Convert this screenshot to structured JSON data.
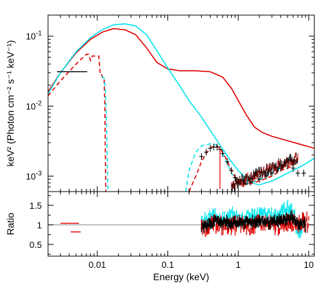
{
  "chart_data": [
    {
      "panel": "spectrum",
      "type": "line",
      "x_scale": "log",
      "y_scale": "log",
      "xlim": [
        0.002,
        12
      ],
      "ylim": [
        0.0006,
        0.2
      ],
      "ylabel": "keV² (Photon cm⁻² s⁻¹ keV⁻¹)",
      "xlabel": "",
      "y_ticks": [
        {
          "value": 0.1,
          "label": "10",
          "exp": "-1"
        },
        {
          "value": 0.01,
          "label": "10",
          "exp": "-2"
        },
        {
          "value": 0.001,
          "label": "10",
          "exp": "-3"
        }
      ],
      "colors": {
        "red_model": "#e00000",
        "cyan_model": "#00e5ee",
        "data_black": "#000000"
      },
      "series": [
        {
          "style": "solid",
          "color": "red",
          "points": [
            [
              0.002,
              0.016
            ],
            [
              0.003,
              0.03
            ],
            [
              0.005,
              0.058
            ],
            [
              0.008,
              0.09
            ],
            [
              0.012,
              0.115
            ],
            [
              0.017,
              0.128
            ],
            [
              0.025,
              0.123
            ],
            [
              0.035,
              0.105
            ],
            [
              0.05,
              0.068
            ],
            [
              0.07,
              0.042
            ],
            [
              0.1,
              0.034
            ],
            [
              0.15,
              0.032
            ],
            [
              0.25,
              0.032
            ],
            [
              0.4,
              0.031
            ],
            [
              0.6,
              0.026
            ],
            [
              0.8,
              0.018
            ],
            [
              1.0,
              0.012
            ],
            [
              1.3,
              0.0075
            ],
            [
              1.7,
              0.005
            ],
            [
              2.2,
              0.0042
            ],
            [
              3,
              0.0037
            ],
            [
              5,
              0.0032
            ],
            [
              8,
              0.0028
            ],
            [
              12,
              0.0025
            ]
          ]
        },
        {
          "style": "solid",
          "color": "cyan",
          "points": [
            [
              0.002,
              0.015
            ],
            [
              0.003,
              0.03
            ],
            [
              0.005,
              0.06
            ],
            [
              0.008,
              0.095
            ],
            [
              0.012,
              0.125
            ],
            [
              0.017,
              0.145
            ],
            [
              0.025,
              0.15
            ],
            [
              0.035,
              0.14
            ],
            [
              0.05,
              0.105
            ],
            [
              0.07,
              0.062
            ],
            [
              0.1,
              0.035
            ],
            [
              0.15,
              0.019
            ],
            [
              0.2,
              0.012
            ],
            [
              0.3,
              0.007
            ],
            [
              0.5,
              0.0032
            ],
            [
              0.8,
              0.0016
            ],
            [
              1.0,
              0.0012
            ],
            [
              1.5,
              0.0008
            ],
            [
              2,
              0.00075
            ],
            [
              3,
              0.00085
            ],
            [
              5,
              0.0011
            ],
            [
              8,
              0.0014
            ],
            [
              12,
              0.0018
            ]
          ]
        },
        {
          "style": "dashed",
          "color": "red",
          "points": [
            [
              0.002,
              0.014
            ],
            [
              0.003,
              0.023
            ],
            [
              0.005,
              0.04
            ],
            [
              0.007,
              0.055
            ],
            [
              0.0075,
              0.055
            ],
            [
              0.008,
              0.045
            ],
            [
              0.0085,
              0.052
            ],
            [
              0.0095,
              0.052
            ],
            [
              0.0105,
              0.052
            ],
            [
              0.011,
              0.028
            ],
            [
              0.0115,
              0.028
            ],
            [
              0.012,
              0.025
            ],
            [
              0.0125,
              0.025
            ],
            [
              0.0128,
              0.01
            ],
            [
              0.013,
              0.002
            ],
            [
              0.0132,
              0.0006
            ]
          ]
        },
        {
          "style": "dashed",
          "color": "cyan",
          "points": [
            [
              0.0115,
              0.026
            ],
            [
              0.012,
              0.026
            ],
            [
              0.0125,
              0.025
            ],
            [
              0.013,
              0.018
            ],
            [
              0.0135,
              0.006
            ],
            [
              0.014,
              0.001
            ],
            [
              0.0142,
              0.0006
            ]
          ]
        },
        {
          "style": "dashed",
          "color": "cyan",
          "points": [
            [
              0.18,
              0.0006
            ],
            [
              0.2,
              0.0012
            ],
            [
              0.25,
              0.0022
            ],
            [
              0.3,
              0.0027
            ],
            [
              0.4,
              0.0029
            ],
            [
              0.5,
              0.0028
            ],
            [
              0.55,
              0.0025
            ],
            [
              0.65,
              0.0018
            ],
            [
              0.8,
              0.0011
            ],
            [
              1.0,
              0.0008
            ],
            [
              1.2,
              0.00075
            ],
            [
              1.5,
              0.0008
            ],
            [
              2,
              0.0009
            ],
            [
              3,
              0.0011
            ],
            [
              4,
              0.0013
            ],
            [
              5,
              0.0015
            ],
            [
              6,
              0.0016
            ]
          ]
        },
        {
          "style": "dashed",
          "color": "red",
          "points": [
            [
              0.2,
              0.0006
            ],
            [
              0.25,
              0.001
            ],
            [
              0.3,
              0.0016
            ],
            [
              0.35,
              0.0021
            ],
            [
              0.4,
              0.0025
            ],
            [
              0.45,
              0.0027
            ],
            [
              0.5,
              0.0027
            ],
            [
              0.55,
              0.0025
            ],
            [
              0.65,
              0.0019
            ],
            [
              0.8,
              0.0012
            ],
            [
              1.0,
              0.0008
            ],
            [
              1.3,
              0.00075
            ],
            [
              2,
              0.00085
            ],
            [
              3,
              0.001
            ],
            [
              4,
              0.0012
            ],
            [
              5,
              0.0013
            ],
            [
              6,
              0.0014
            ]
          ]
        },
        {
          "style": "data",
          "color": "black",
          "points": [
            [
              0.0035,
              0.031
            ],
            [
              0.0055,
              0.031
            ],
            [
              0.3,
              0.0019
            ],
            [
              0.35,
              0.0022
            ],
            [
              0.4,
              0.0025
            ],
            [
              0.45,
              0.0026
            ],
            [
              0.5,
              0.0026
            ],
            [
              0.55,
              0.0024
            ],
            [
              0.6,
              0.0021
            ],
            [
              0.7,
              0.0016
            ],
            [
              0.8,
              0.0012
            ],
            [
              0.9,
              0.00095
            ],
            [
              1.0,
              0.0008
            ],
            [
              1.2,
              0.00078
            ],
            [
              1.5,
              0.00082
            ],
            [
              2.0,
              0.0009
            ],
            [
              2.5,
              0.001
            ],
            [
              3.0,
              0.0011
            ],
            [
              3.5,
              0.0012
            ],
            [
              4.0,
              0.0013
            ],
            [
              5.0,
              0.0014
            ],
            [
              6.0,
              0.0013
            ],
            [
              7.0,
              0.0011
            ],
            [
              8.5,
              0.0011
            ]
          ]
        }
      ]
    },
    {
      "panel": "ratio",
      "type": "scatter",
      "x_scale": "log",
      "xlim": [
        0.002,
        12
      ],
      "ylim": [
        0.2,
        1.85
      ],
      "ylabel": "Ratio",
      "xlabel": "Energy (keV)",
      "y_ticks": [
        {
          "value": 0.5,
          "label": "0.5"
        },
        {
          "value": 1,
          "label": "1"
        },
        {
          "value": 1.5,
          "label": "1.5"
        }
      ],
      "x_ticks": [
        {
          "value": 0.01,
          "label": "0.01"
        },
        {
          "value": 0.1,
          "label": "0.1"
        },
        {
          "value": 1,
          "label": "1"
        },
        {
          "value": 10,
          "label": "10"
        }
      ],
      "reference_line": 1,
      "segments": [
        {
          "color": "red",
          "x0": 0.003,
          "x1": 0.0055,
          "y": 1.04
        },
        {
          "color": "red",
          "x0": 0.0042,
          "x1": 0.0058,
          "y": 0.82
        }
      ],
      "band_cyan": [
        [
          0.3,
          1.0
        ],
        [
          0.4,
          1.15
        ],
        [
          0.5,
          1.25
        ],
        [
          0.6,
          1.1
        ],
        [
          0.8,
          1.2
        ],
        [
          1.0,
          1.15
        ],
        [
          1.5,
          1.2
        ],
        [
          2,
          1.25
        ],
        [
          3,
          1.2
        ],
        [
          4,
          1.3
        ],
        [
          5,
          1.45
        ],
        [
          6,
          1.3
        ],
        [
          7,
          0.85
        ],
        [
          8,
          0.9
        ]
      ],
      "band_red": [
        [
          0.3,
          0.9
        ],
        [
          0.4,
          1.0
        ],
        [
          0.5,
          1.05
        ],
        [
          0.6,
          0.95
        ],
        [
          0.8,
          1.0
        ],
        [
          1.0,
          1.0
        ],
        [
          1.5,
          0.95
        ],
        [
          2,
          1.05
        ],
        [
          3,
          1.0
        ],
        [
          4,
          0.95
        ],
        [
          5,
          1.1
        ],
        [
          6,
          1.05
        ],
        [
          8,
          1.05
        ],
        [
          10,
          1.08
        ]
      ],
      "band_black": [
        [
          0.3,
          0.95
        ],
        [
          0.5,
          1.1
        ],
        [
          0.8,
          1.05
        ],
        [
          1.0,
          1.05
        ],
        [
          2,
          1.1
        ],
        [
          3,
          1.05
        ],
        [
          5,
          1.15
        ],
        [
          6,
          1.2
        ],
        [
          7,
          1.0
        ],
        [
          9,
          1.05
        ]
      ]
    }
  ]
}
